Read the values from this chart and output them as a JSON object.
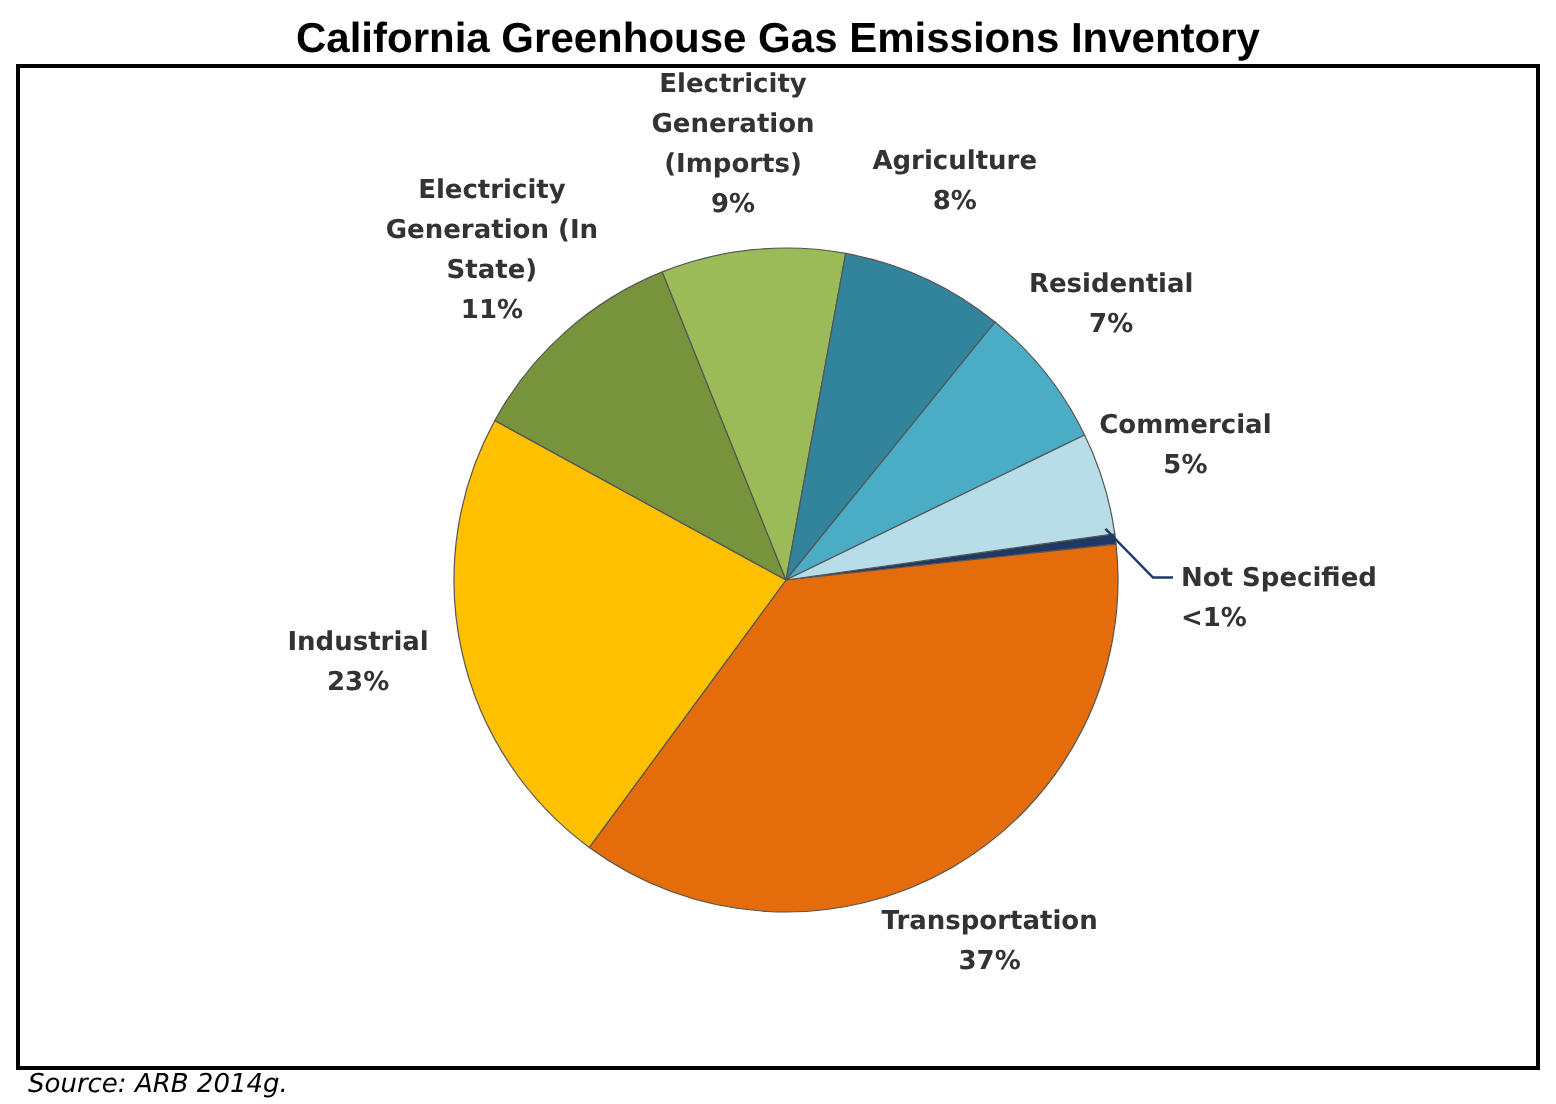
{
  "chart_data": {
    "type": "pie",
    "title": "California Greenhouse Gas Emissions Inventory",
    "annotations": [
      "Source: ARB 2014g."
    ],
    "categories": [
      "Not Specified",
      "Transportation",
      "Industrial",
      "Electricity Generation (In State)",
      "Electricity Generation (Imports)",
      "Agriculture",
      "Residential",
      "Commercial"
    ],
    "values": [
      0.5,
      37,
      23,
      11,
      9,
      8,
      7,
      5
    ],
    "value_labels": [
      "<1%",
      "37%",
      "23%",
      "11%",
      "9%",
      "8%",
      "7%",
      "5%"
    ],
    "colors": [
      "#1f3864",
      "#e46c0a",
      "#ffc000",
      "#77933c",
      "#9bbb59",
      "#31849b",
      "#4bacc6",
      "#b7dee8"
    ]
  }
}
